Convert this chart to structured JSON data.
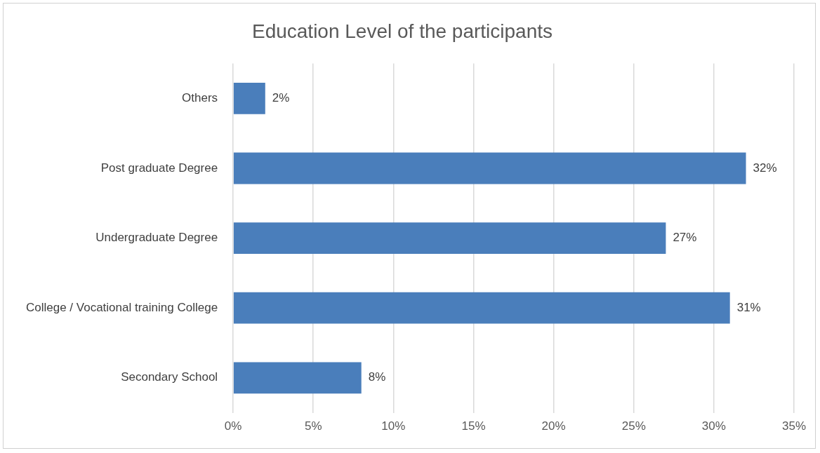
{
  "chart_data": {
    "type": "bar",
    "orientation": "horizontal",
    "title": "Education Level of the participants",
    "categories": [
      "Others",
      "Post graduate Degree",
      "Undergraduate Degree",
      "College / Vocational training College",
      "Secondary School"
    ],
    "values": [
      2,
      32,
      27,
      31,
      8
    ],
    "value_labels": [
      "2%",
      "32%",
      "27%",
      "31%",
      "8%"
    ],
    "color": "#4a7ebb",
    "xlim": [
      0,
      35
    ],
    "xticks": [
      {
        "value": 0,
        "label": "0%"
      },
      {
        "value": 5,
        "label": "5%"
      },
      {
        "value": 10,
        "label": "10%"
      },
      {
        "value": 15,
        "label": "15%"
      },
      {
        "value": 20,
        "label": "20%"
      },
      {
        "value": 25,
        "label": "25%"
      },
      {
        "value": 30,
        "label": "30%"
      },
      {
        "value": 35,
        "label": "35%"
      }
    ],
    "grid": "x",
    "legend": false
  }
}
